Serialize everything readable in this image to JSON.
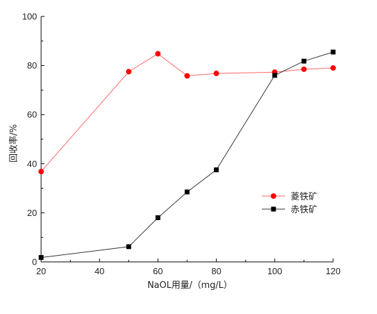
{
  "chart_data": {
    "type": "line",
    "x": [
      20,
      50,
      60,
      70,
      80,
      100,
      110,
      120
    ],
    "xlabel": "NaOL用量/（mg/L）",
    "ylabel": "回收率/%",
    "xlim": [
      20,
      120
    ],
    "ylim": [
      0,
      100
    ],
    "xticks": [
      20,
      40,
      60,
      80,
      100,
      120
    ],
    "yticks": [
      0,
      20,
      40,
      60,
      80,
      100
    ],
    "xtick_labels": [
      "20",
      "40",
      "60",
      "80",
      "100",
      "120"
    ],
    "ytick_labels": [
      "0",
      "20",
      "40",
      "60",
      "80",
      "100"
    ],
    "grid": false,
    "legend_position": "right",
    "series": [
      {
        "name": "菱铁矿",
        "marker": "circle",
        "color": "#ff0000",
        "line_color": "#ff6666",
        "values": [
          36.8,
          77.5,
          84.8,
          75.8,
          76.8,
          77.3,
          78.5,
          79.0
        ]
      },
      {
        "name": "赤铁矿",
        "marker": "square",
        "color": "#000000",
        "line_color": "#333333",
        "values": [
          1.8,
          6.2,
          18.0,
          28.5,
          37.5,
          76.0,
          81.8,
          85.5
        ]
      }
    ]
  }
}
